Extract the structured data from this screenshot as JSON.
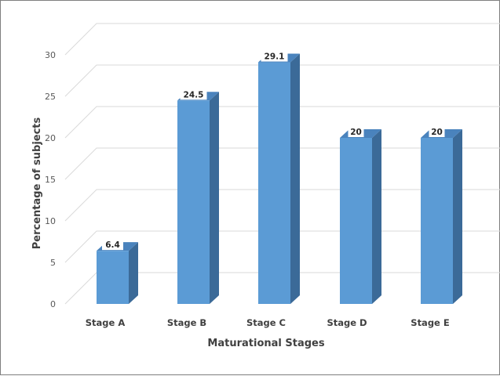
{
  "chart_data": {
    "type": "bar",
    "categories": [
      "Stage A",
      "Stage B",
      "Stage C",
      "Stage D",
      "Stage E"
    ],
    "values": [
      6.4,
      24.5,
      29.1,
      20,
      20
    ],
    "data_labels": [
      "6.4",
      "24.5",
      "29.1",
      "20",
      "20"
    ],
    "xlabel": "Maturational  Stages",
    "ylabel": "Percentage of subjects",
    "ylim": [
      0,
      30
    ],
    "yticks": [
      "0",
      "5",
      "10",
      "15",
      "20",
      "25",
      "30"
    ],
    "grid": true,
    "style": "3d-column",
    "colors": {
      "bar_front": "#5b9bd5",
      "bar_side": "#3b6a98",
      "bar_top": "#4a83bd",
      "gridline": "#d9d9d9",
      "text": "#404040"
    }
  }
}
